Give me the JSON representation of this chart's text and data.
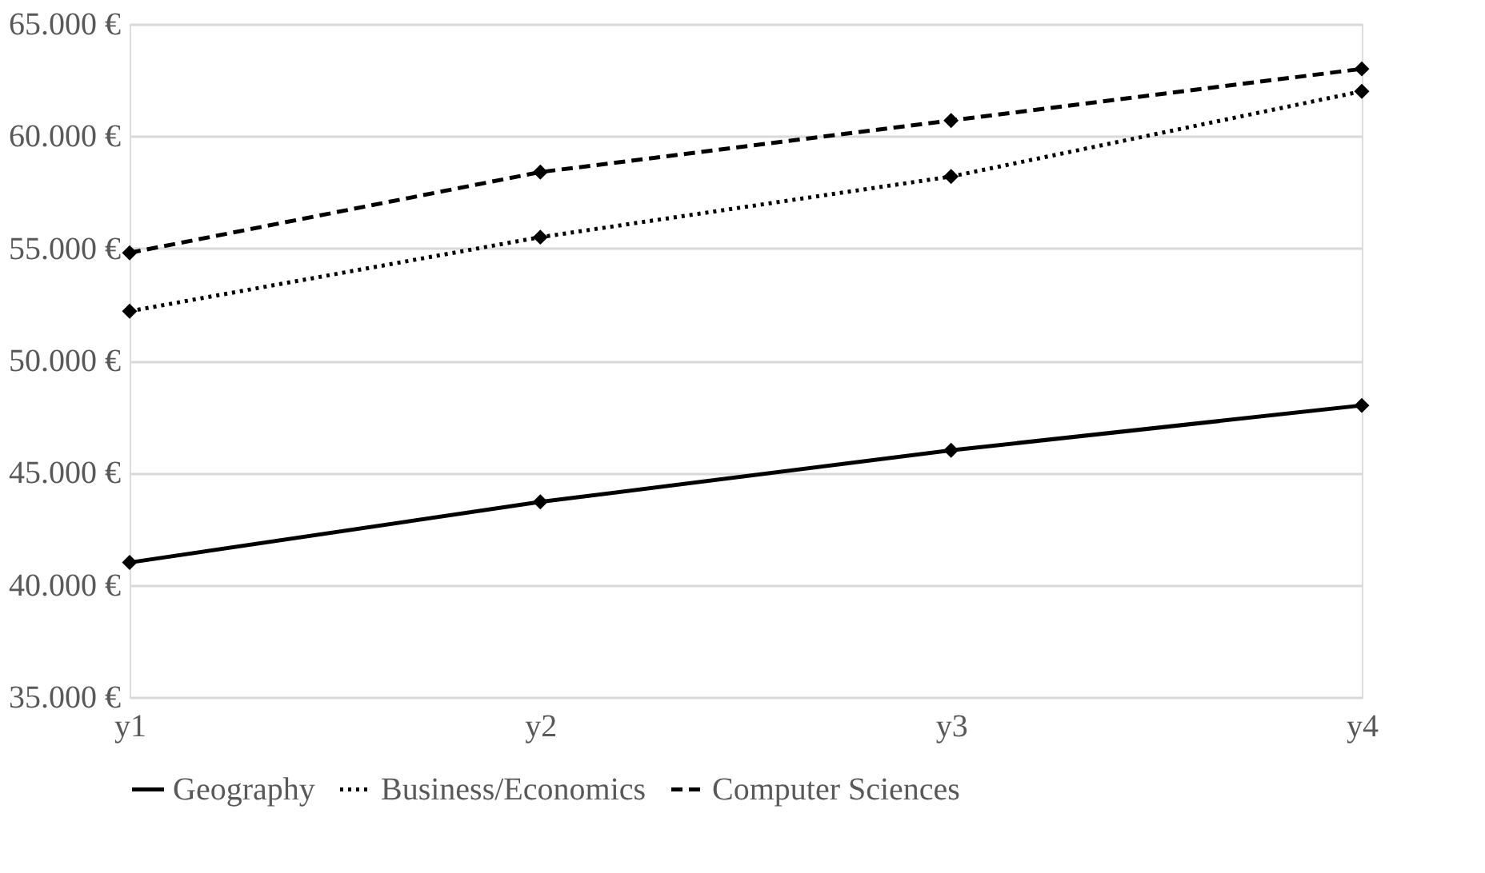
{
  "chart_data": {
    "type": "line",
    "categories": [
      "y1",
      "y2",
      "y3",
      "y4"
    ],
    "series": [
      {
        "name": "Geography",
        "color": "#000000",
        "line_style": "solid",
        "values": [
          41000,
          43700,
          46000,
          48000
        ]
      },
      {
        "name": "Business/Economics",
        "color": "#000000",
        "line_style": "dotted",
        "values": [
          52200,
          55500,
          58200,
          62000
        ]
      },
      {
        "name": "Computer Sciences",
        "color": "#000000",
        "line_style": "dashed",
        "values": [
          54800,
          58400,
          60700,
          63000
        ]
      }
    ],
    "ylim": [
      35000,
      65000
    ],
    "yticks": [
      {
        "value": 35000,
        "label": "35.000 €"
      },
      {
        "value": 40000,
        "label": "40.000 €"
      },
      {
        "value": 45000,
        "label": "45.000 €"
      },
      {
        "value": 50000,
        "label": "50.000 €"
      },
      {
        "value": 55000,
        "label": "55.000 €"
      },
      {
        "value": 60000,
        "label": "60.000 €"
      },
      {
        "value": 65000,
        "label": "65.000 €"
      }
    ],
    "grid": "y",
    "legend": "bottom",
    "marker": "diamond"
  }
}
